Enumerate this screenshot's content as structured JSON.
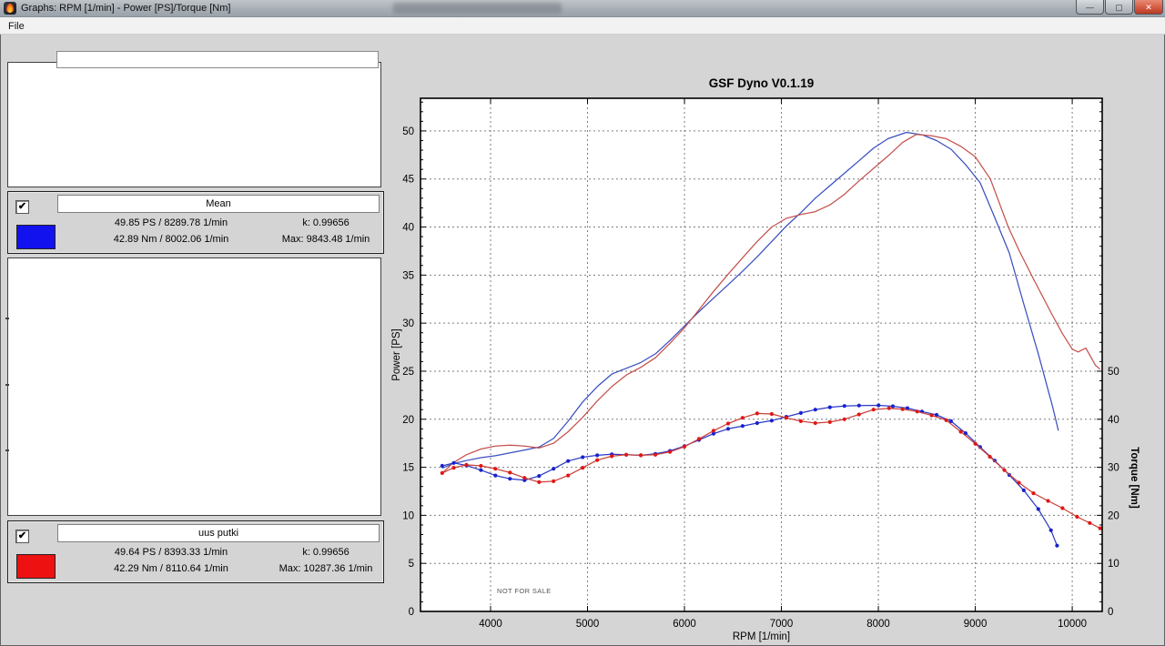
{
  "window": {
    "title": "Graphs: RPM [1/min] - Power [PS]/Torque [Nm]",
    "app_icon": "flame-icon",
    "menu_items": [
      {
        "label": "File"
      }
    ],
    "controls": {
      "minimize": "—",
      "maximize": "▢",
      "close": "✕"
    }
  },
  "panels": {
    "entries": [
      {
        "name": "Mean",
        "checked": true,
        "swatch_color": "#1212ef",
        "power_stat": "49.85 PS / 8289.78 1/min",
        "k_stat": "k: 0.99656",
        "torque_stat": "42.89 Nm / 8002.06 1/min",
        "max_stat": "Max: 9843.48 1/min"
      },
      {
        "name": "uus putki",
        "checked": true,
        "swatch_color": "#ee1111",
        "power_stat": "49.64 PS / 8393.33 1/min",
        "k_stat": "k: 0.99656",
        "torque_stat": "42.29 Nm / 8110.64 1/min",
        "max_stat": "Max: 10287.36 1/min"
      }
    ]
  },
  "chart_data": {
    "type": "line",
    "title": "GSF Dyno V0.1.19",
    "xlabel": "RPM [1/min]",
    "ylabel_left": "Power [PS]",
    "ylabel_right": "Torque [Nm]",
    "watermark": "NOT FOR SALE",
    "grid": "dashed",
    "legend_position": "none",
    "xlim": [
      3277,
      10309
    ],
    "ylim_left": [
      0,
      53.4
    ],
    "ylim_right": [
      0,
      106.8
    ],
    "xticks": [
      4000,
      5000,
      6000,
      7000,
      8000,
      9000,
      10000
    ],
    "yticks_left": [
      0,
      5,
      10,
      15,
      20,
      25,
      30,
      35,
      40,
      45,
      50
    ],
    "yticks_right": [
      0,
      10,
      20,
      30,
      40,
      50
    ],
    "y_minor_step_left": 1,
    "y_minor_step_right": 2,
    "series": [
      {
        "id": "power-curve-mean",
        "name": "Mean power [PS]",
        "axis": "left",
        "color": "#3a4fc0",
        "markers": false,
        "points": [
          [
            3500,
            14.9
          ],
          [
            3620,
            15.4
          ],
          [
            3750,
            15.7
          ],
          [
            3900,
            16.0
          ],
          [
            4050,
            16.2
          ],
          [
            4200,
            16.5
          ],
          [
            4350,
            16.8
          ],
          [
            4500,
            17.1
          ],
          [
            4650,
            18.0
          ],
          [
            4800,
            19.8
          ],
          [
            4950,
            21.8
          ],
          [
            5100,
            23.4
          ],
          [
            5250,
            24.7
          ],
          [
            5400,
            25.3
          ],
          [
            5550,
            25.9
          ],
          [
            5700,
            26.8
          ],
          [
            5850,
            28.2
          ],
          [
            6000,
            29.7
          ],
          [
            6150,
            31.2
          ],
          [
            6300,
            32.6
          ],
          [
            6450,
            34.0
          ],
          [
            6600,
            35.4
          ],
          [
            6750,
            36.9
          ],
          [
            6900,
            38.5
          ],
          [
            7050,
            40.1
          ],
          [
            7200,
            41.5
          ],
          [
            7350,
            43.0
          ],
          [
            7500,
            44.3
          ],
          [
            7650,
            45.6
          ],
          [
            7800,
            46.9
          ],
          [
            7950,
            48.2
          ],
          [
            8100,
            49.2
          ],
          [
            8290,
            49.85
          ],
          [
            8450,
            49.6
          ],
          [
            8600,
            49.0
          ],
          [
            8750,
            48.1
          ],
          [
            8900,
            46.5
          ],
          [
            9050,
            44.6
          ],
          [
            9200,
            41.0
          ],
          [
            9350,
            37.3
          ],
          [
            9500,
            32.0
          ],
          [
            9650,
            26.8
          ],
          [
            9800,
            21.2
          ],
          [
            9857,
            18.8
          ]
        ]
      },
      {
        "id": "power-curve-uus-putki",
        "name": "uus putki power [PS]",
        "axis": "left",
        "color": "#c4524e",
        "markers": false,
        "points": [
          [
            3500,
            14.4
          ],
          [
            3620,
            15.5
          ],
          [
            3750,
            16.3
          ],
          [
            3900,
            16.9
          ],
          [
            4050,
            17.2
          ],
          [
            4200,
            17.3
          ],
          [
            4350,
            17.2
          ],
          [
            4500,
            17.0
          ],
          [
            4650,
            17.5
          ],
          [
            4800,
            18.7
          ],
          [
            4950,
            20.2
          ],
          [
            5100,
            21.9
          ],
          [
            5250,
            23.4
          ],
          [
            5400,
            24.6
          ],
          [
            5550,
            25.4
          ],
          [
            5700,
            26.4
          ],
          [
            5850,
            27.9
          ],
          [
            6000,
            29.5
          ],
          [
            6150,
            31.4
          ],
          [
            6300,
            33.3
          ],
          [
            6450,
            35.1
          ],
          [
            6600,
            36.8
          ],
          [
            6750,
            38.5
          ],
          [
            6900,
            40.0
          ],
          [
            7050,
            40.9
          ],
          [
            7200,
            41.3
          ],
          [
            7350,
            41.6
          ],
          [
            7500,
            42.3
          ],
          [
            7650,
            43.4
          ],
          [
            7800,
            44.8
          ],
          [
            7950,
            46.1
          ],
          [
            8100,
            47.4
          ],
          [
            8250,
            48.8
          ],
          [
            8393,
            49.64
          ],
          [
            8550,
            49.5
          ],
          [
            8700,
            49.2
          ],
          [
            8850,
            48.4
          ],
          [
            9000,
            47.3
          ],
          [
            9155,
            45.0
          ],
          [
            9340,
            40.0
          ],
          [
            9450,
            37.6
          ],
          [
            9600,
            34.6
          ],
          [
            9780,
            31.1
          ],
          [
            9900,
            28.9
          ],
          [
            10000,
            27.3
          ],
          [
            10060,
            27.0
          ],
          [
            10140,
            27.4
          ],
          [
            10240,
            25.6
          ],
          [
            10287,
            25.2
          ]
        ]
      },
      {
        "id": "torque-curve-mean",
        "name": "Mean torque [Nm]",
        "axis": "right",
        "color": "#2c3ac8",
        "marker_color": "#1822cc",
        "markers": true,
        "points": [
          [
            3500,
            30.3
          ],
          [
            3620,
            30.9
          ],
          [
            3750,
            30.4
          ],
          [
            3900,
            29.4
          ],
          [
            4050,
            28.3
          ],
          [
            4200,
            27.6
          ],
          [
            4350,
            27.3
          ],
          [
            4500,
            28.2
          ],
          [
            4650,
            29.7
          ],
          [
            4800,
            31.3
          ],
          [
            4950,
            32.1
          ],
          [
            5100,
            32.5
          ],
          [
            5250,
            32.7
          ],
          [
            5400,
            32.6
          ],
          [
            5550,
            32.5
          ],
          [
            5700,
            32.8
          ],
          [
            5850,
            33.4
          ],
          [
            6000,
            34.4
          ],
          [
            6150,
            35.7
          ],
          [
            6300,
            37.0
          ],
          [
            6450,
            38.0
          ],
          [
            6600,
            38.6
          ],
          [
            6750,
            39.2
          ],
          [
            6900,
            39.7
          ],
          [
            7050,
            40.5
          ],
          [
            7200,
            41.3
          ],
          [
            7350,
            42.0
          ],
          [
            7500,
            42.5
          ],
          [
            7650,
            42.75
          ],
          [
            7800,
            42.85
          ],
          [
            8002,
            42.89
          ],
          [
            8150,
            42.7
          ],
          [
            8300,
            42.3
          ],
          [
            8450,
            41.6
          ],
          [
            8600,
            40.9
          ],
          [
            8750,
            39.6
          ],
          [
            8900,
            37.1
          ],
          [
            9050,
            34.2
          ],
          [
            9200,
            31.4
          ],
          [
            9350,
            28.4
          ],
          [
            9500,
            25.2
          ],
          [
            9650,
            21.3
          ],
          [
            9780,
            16.9
          ],
          [
            9843,
            13.7
          ]
        ]
      },
      {
        "id": "torque-curve-uus-putki",
        "name": "uus putki torque [Nm]",
        "axis": "right",
        "color": "#cc3f3a",
        "marker_color": "#e01814",
        "markers": true,
        "points": [
          [
            3500,
            28.8
          ],
          [
            3620,
            29.9
          ],
          [
            3750,
            30.5
          ],
          [
            3900,
            30.3
          ],
          [
            4050,
            29.7
          ],
          [
            4200,
            28.9
          ],
          [
            4350,
            27.8
          ],
          [
            4500,
            26.9
          ],
          [
            4650,
            27.1
          ],
          [
            4800,
            28.3
          ],
          [
            4950,
            29.9
          ],
          [
            5100,
            31.5
          ],
          [
            5250,
            32.3
          ],
          [
            5400,
            32.6
          ],
          [
            5550,
            32.5
          ],
          [
            5700,
            32.6
          ],
          [
            5850,
            33.2
          ],
          [
            6000,
            34.3
          ],
          [
            6150,
            35.9
          ],
          [
            6300,
            37.6
          ],
          [
            6450,
            39.1
          ],
          [
            6600,
            40.3
          ],
          [
            6750,
            41.2
          ],
          [
            6900,
            41.1
          ],
          [
            7050,
            40.3
          ],
          [
            7200,
            39.6
          ],
          [
            7350,
            39.2
          ],
          [
            7500,
            39.4
          ],
          [
            7650,
            40.0
          ],
          [
            7800,
            41.0
          ],
          [
            7950,
            42.0
          ],
          [
            8110,
            42.29
          ],
          [
            8250,
            42.1
          ],
          [
            8400,
            41.6
          ],
          [
            8550,
            40.8
          ],
          [
            8700,
            39.8
          ],
          [
            8850,
            37.4
          ],
          [
            9000,
            34.9
          ],
          [
            9150,
            32.2
          ],
          [
            9300,
            29.4
          ],
          [
            9450,
            26.8
          ],
          [
            9600,
            24.6
          ],
          [
            9750,
            23.0
          ],
          [
            9900,
            21.5
          ],
          [
            10050,
            19.7
          ],
          [
            10180,
            18.4
          ],
          [
            10287,
            17.3
          ]
        ]
      }
    ]
  }
}
